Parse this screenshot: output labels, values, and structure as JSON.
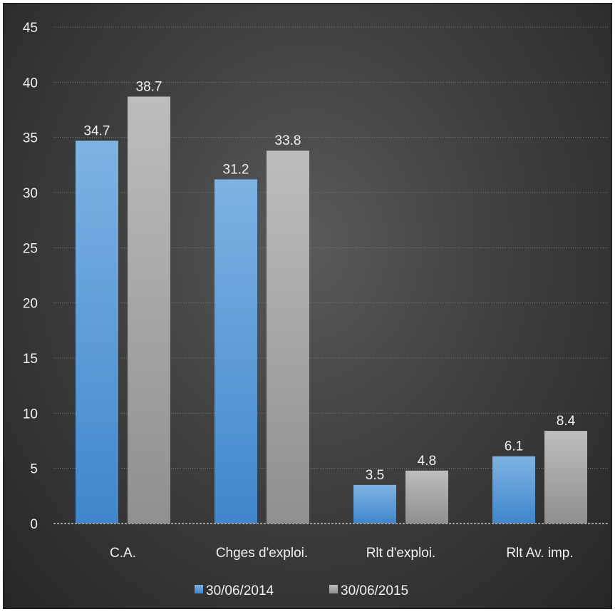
{
  "chart_data": {
    "type": "bar",
    "title": "",
    "xlabel": "",
    "ylabel": "",
    "categories": [
      "C.A.",
      "Chges d'exploi.",
      "Rlt d'exploi.",
      "Rlt Av. imp."
    ],
    "series": [
      {
        "name": "30/06/2014",
        "color": "#5b9bd5",
        "values": [
          34.7,
          31.2,
          3.5,
          6.1
        ],
        "value_labels": [
          "34.7",
          "31.2",
          "3.5",
          "6.1"
        ]
      },
      {
        "name": "30/06/2015",
        "color": "#a5a5a5",
        "values": [
          38.7,
          33.8,
          4.8,
          8.4
        ],
        "value_labels": [
          "38.7",
          "33.8",
          "4.8",
          "8.4"
        ]
      }
    ],
    "ylim": [
      0,
      45
    ],
    "yticks": [
      0,
      5,
      10,
      15,
      20,
      25,
      30,
      35,
      40,
      45
    ],
    "ytick_labels": [
      "0",
      "5",
      "10",
      "15",
      "20",
      "25",
      "30",
      "35",
      "40",
      "45"
    ],
    "grid": true,
    "legend_position": "bottom"
  }
}
